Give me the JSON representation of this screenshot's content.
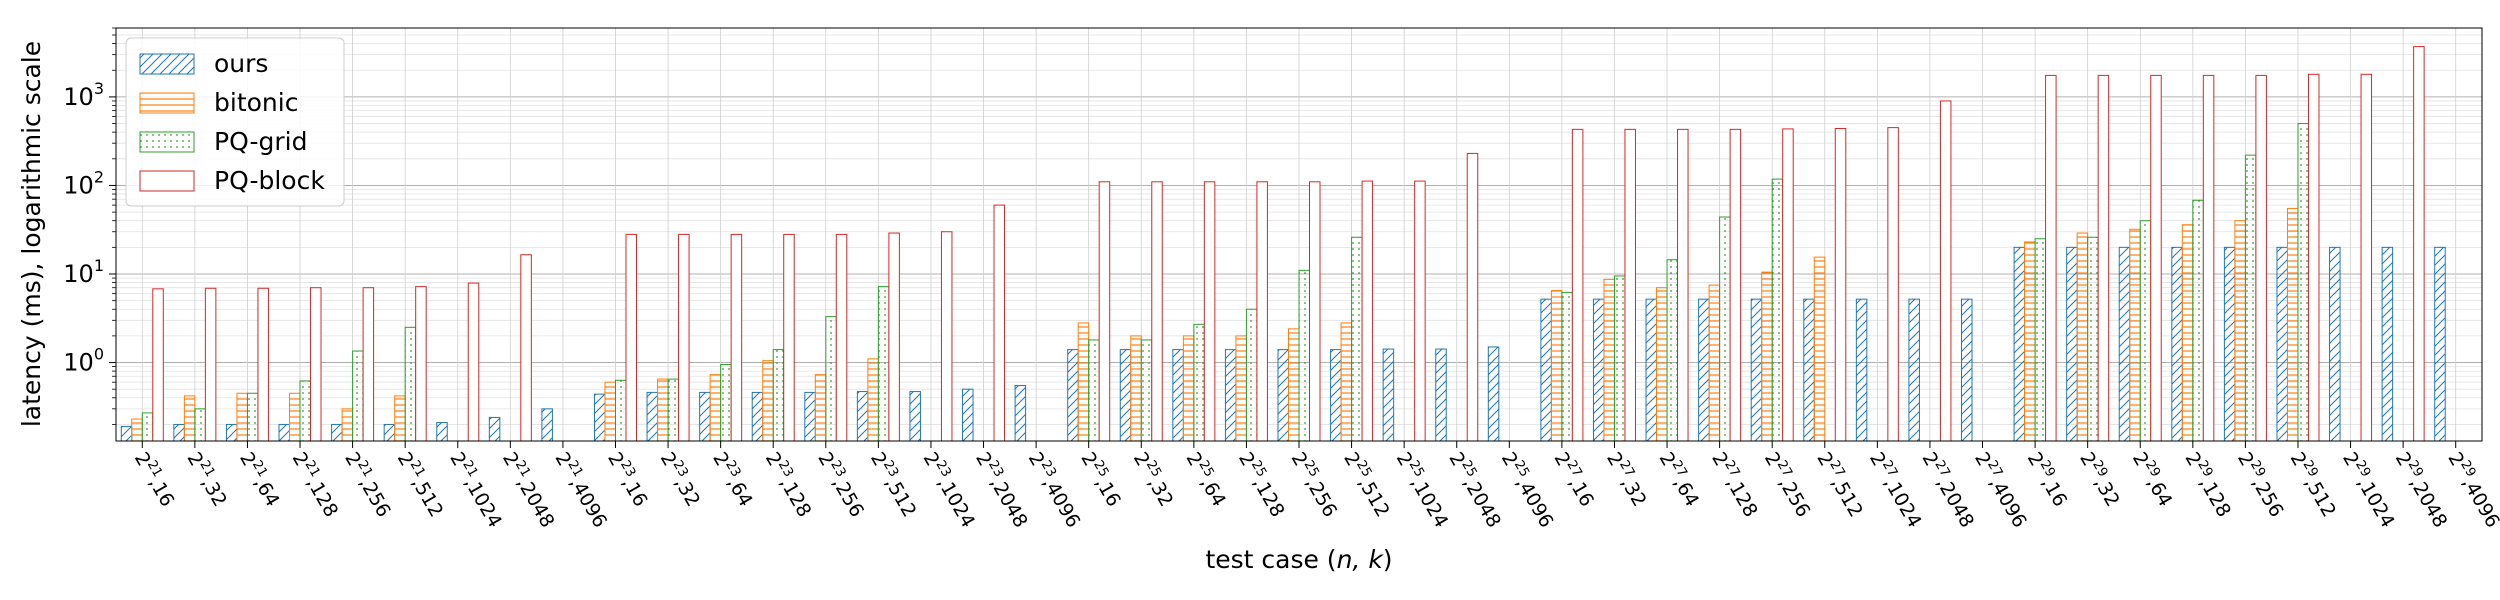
{
  "chart_data": {
    "type": "bar",
    "xlabel_prefix": "test case (",
    "xlabel_vars": "n, k",
    "xlabel_suffix": ")",
    "ylabel": "latency (ms), logarithmic scale",
    "yscale": "log",
    "ylim": [
      0.13,
      6000
    ],
    "ytick_values": [
      1,
      10,
      100,
      1000
    ],
    "grid": true,
    "legend_position": "top-left",
    "categories": [
      "2^21,16",
      "2^21,32",
      "2^21,64",
      "2^21,128",
      "2^21,256",
      "2^21,512",
      "2^21,1024",
      "2^21,2048",
      "2^21,4096",
      "2^23,16",
      "2^23,32",
      "2^23,64",
      "2^23,128",
      "2^23,256",
      "2^23,512",
      "2^23,1024",
      "2^23,2048",
      "2^23,4096",
      "2^25,16",
      "2^25,32",
      "2^25,64",
      "2^25,128",
      "2^25,256",
      "2^25,512",
      "2^25,1024",
      "2^25,2048",
      "2^25,4096",
      "2^27,16",
      "2^27,32",
      "2^27,64",
      "2^27,128",
      "2^27,256",
      "2^27,512",
      "2^27,1024",
      "2^27,2048",
      "2^27,4096",
      "2^29,16",
      "2^29,32",
      "2^29,64",
      "2^29,128",
      "2^29,256",
      "2^29,512",
      "2^29,1024",
      "2^29,2048",
      "2^29,4096"
    ],
    "tick_labels": [
      {
        "base": "2",
        "exp": "21",
        "k": ",16"
      },
      {
        "base": "2",
        "exp": "21",
        "k": ",32"
      },
      {
        "base": "2",
        "exp": "21",
        "k": ",64"
      },
      {
        "base": "2",
        "exp": "21",
        "k": ",128"
      },
      {
        "base": "2",
        "exp": "21",
        "k": ",256"
      },
      {
        "base": "2",
        "exp": "21",
        "k": ",512"
      },
      {
        "base": "2",
        "exp": "21",
        "k": ",1024"
      },
      {
        "base": "2",
        "exp": "21",
        "k": ",2048"
      },
      {
        "base": "2",
        "exp": "21",
        "k": ",4096"
      },
      {
        "base": "2",
        "exp": "23",
        "k": ",16"
      },
      {
        "base": "2",
        "exp": "23",
        "k": ",32"
      },
      {
        "base": "2",
        "exp": "23",
        "k": ",64"
      },
      {
        "base": "2",
        "exp": "23",
        "k": ",128"
      },
      {
        "base": "2",
        "exp": "23",
        "k": ",256"
      },
      {
        "base": "2",
        "exp": "23",
        "k": ",512"
      },
      {
        "base": "2",
        "exp": "23",
        "k": ",1024"
      },
      {
        "base": "2",
        "exp": "23",
        "k": ",2048"
      },
      {
        "base": "2",
        "exp": "23",
        "k": ",4096"
      },
      {
        "base": "2",
        "exp": "25",
        "k": ",16"
      },
      {
        "base": "2",
        "exp": "25",
        "k": ",32"
      },
      {
        "base": "2",
        "exp": "25",
        "k": ",64"
      },
      {
        "base": "2",
        "exp": "25",
        "k": ",128"
      },
      {
        "base": "2",
        "exp": "25",
        "k": ",256"
      },
      {
        "base": "2",
        "exp": "25",
        "k": ",512"
      },
      {
        "base": "2",
        "exp": "25",
        "k": ",1024"
      },
      {
        "base": "2",
        "exp": "25",
        "k": ",2048"
      },
      {
        "base": "2",
        "exp": "25",
        "k": ",4096"
      },
      {
        "base": "2",
        "exp": "27",
        "k": ",16"
      },
      {
        "base": "2",
        "exp": "27",
        "k": ",32"
      },
      {
        "base": "2",
        "exp": "27",
        "k": ",64"
      },
      {
        "base": "2",
        "exp": "27",
        "k": ",128"
      },
      {
        "base": "2",
        "exp": "27",
        "k": ",256"
      },
      {
        "base": "2",
        "exp": "27",
        "k": ",512"
      },
      {
        "base": "2",
        "exp": "27",
        "k": ",1024"
      },
      {
        "base": "2",
        "exp": "27",
        "k": ",2048"
      },
      {
        "base": "2",
        "exp": "27",
        "k": ",4096"
      },
      {
        "base": "2",
        "exp": "29",
        "k": ",16"
      },
      {
        "base": "2",
        "exp": "29",
        "k": ",32"
      },
      {
        "base": "2",
        "exp": "29",
        "k": ",64"
      },
      {
        "base": "2",
        "exp": "29",
        "k": ",128"
      },
      {
        "base": "2",
        "exp": "29",
        "k": ",256"
      },
      {
        "base": "2",
        "exp": "29",
        "k": ",512"
      },
      {
        "base": "2",
        "exp": "29",
        "k": ",1024"
      },
      {
        "base": "2",
        "exp": "29",
        "k": ",2048"
      },
      {
        "base": "2",
        "exp": "29",
        "k": ",4096"
      }
    ],
    "series": [
      {
        "name": "ours",
        "color": "#1f77b4",
        "hatch": "diagonal",
        "values": [
          0.19,
          0.2,
          0.2,
          0.2,
          0.2,
          0.2,
          0.21,
          0.24,
          0.3,
          0.44,
          0.46,
          0.46,
          0.46,
          0.46,
          0.47,
          0.47,
          0.5,
          0.55,
          1.4,
          1.4,
          1.4,
          1.4,
          1.4,
          1.4,
          1.42,
          1.42,
          1.5,
          5.2,
          5.2,
          5.2,
          5.2,
          5.2,
          5.2,
          5.2,
          5.2,
          5.2,
          20,
          20,
          20,
          20,
          20,
          20,
          20,
          20,
          20
        ]
      },
      {
        "name": "bitonic",
        "color": "#ff7f0e",
        "hatch": "horizontal",
        "values": [
          0.23,
          0.42,
          0.45,
          0.45,
          0.3,
          0.42,
          null,
          null,
          null,
          0.6,
          0.65,
          0.73,
          1.05,
          0.73,
          1.1,
          null,
          null,
          null,
          2.8,
          2.0,
          2.0,
          2.0,
          2.4,
          2.8,
          null,
          null,
          null,
          6.5,
          8.7,
          7.0,
          7.5,
          10.5,
          15.5,
          null,
          null,
          null,
          23,
          29,
          32,
          36,
          40,
          55,
          null,
          null,
          null
        ]
      },
      {
        "name": "PQ-grid",
        "color": "#2ca02c",
        "hatch": "dots",
        "values": [
          0.27,
          0.3,
          0.45,
          0.62,
          1.35,
          2.5,
          null,
          null,
          null,
          0.63,
          0.65,
          0.95,
          1.4,
          3.3,
          7.2,
          null,
          null,
          null,
          1.8,
          1.8,
          2.7,
          4.0,
          11,
          26,
          null,
          null,
          null,
          6.2,
          9.5,
          14.5,
          44,
          118,
          null,
          null,
          null,
          null,
          25,
          26,
          40,
          68,
          220,
          500,
          null,
          null,
          null
        ]
      },
      {
        "name": "PQ-block",
        "color": "#d62728",
        "hatch": "none",
        "values": [
          6.8,
          6.9,
          6.9,
          7.0,
          7.0,
          7.2,
          7.9,
          16.5,
          null,
          28,
          28,
          28,
          28,
          28,
          29,
          30,
          60,
          null,
          110,
          110,
          110,
          110,
          110,
          112,
          112,
          230,
          null,
          430,
          430,
          430,
          430,
          435,
          440,
          450,
          900,
          null,
          1750,
          1750,
          1750,
          1750,
          1750,
          1800,
          1800,
          3700,
          null
        ]
      }
    ]
  }
}
